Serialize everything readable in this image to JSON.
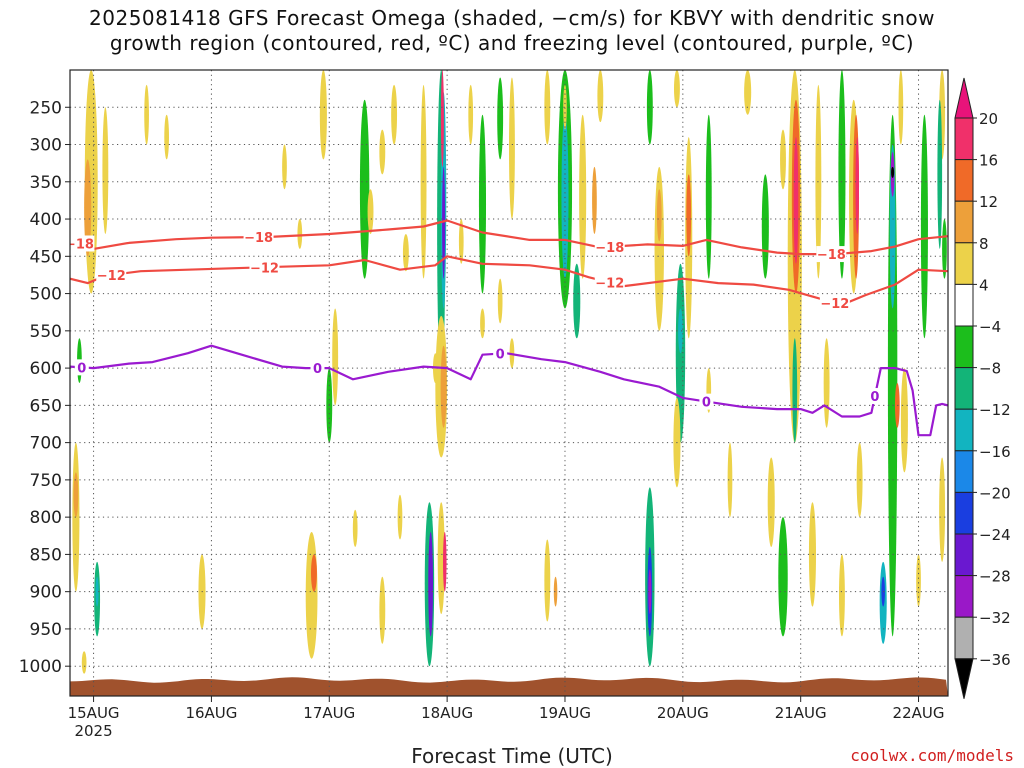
{
  "title_line1": "2025081418 GFS Forecast Omega (shaded, −cm/s) for KBVY with dendritic snow",
  "title_line2": "growth region (contoured, red, ºC) and freezing level (contoured, purple, ºC)",
  "xlabel": "Forecast Time (UTC)",
  "credit": "coolwx.com/models",
  "chart_data": {
    "type": "heatmap",
    "x_axis": {
      "ticks": [
        {
          "label": "15AUG",
          "sub": "2025",
          "day": 0.0
        },
        {
          "label": "16AUG",
          "day": 1.0
        },
        {
          "label": "17AUG",
          "day": 2.0
        },
        {
          "label": "18AUG",
          "day": 3.0
        },
        {
          "label": "19AUG",
          "day": 4.0
        },
        {
          "label": "20AUG",
          "day": 5.0
        },
        {
          "label": "21AUG",
          "day": 6.0
        },
        {
          "label": "22AUG",
          "day": 7.0
        }
      ],
      "range": [
        -0.2,
        7.25
      ]
    },
    "y_axis": {
      "ticks": [
        250,
        300,
        350,
        400,
        450,
        500,
        550,
        600,
        650,
        700,
        750,
        800,
        850,
        900,
        950,
        1000
      ],
      "range": [
        200,
        1040
      ]
    },
    "colorbar": {
      "levels": [
        "20",
        "16",
        "12",
        "8",
        "4",
        "−4",
        "−8",
        "−12",
        "−16",
        "−20",
        "−24",
        "−28",
        "−32",
        "−36"
      ],
      "colors": [
        "#f0306a",
        "#f06a28",
        "#eda03a",
        "#ecd24a",
        "#ffffff",
        "#1cbe1c",
        "#13b478",
        "#12b4c0",
        "#1b88e8",
        "#1a3ee0",
        "#6a18d0",
        "#9a18c8",
        "#b0b0b0"
      ],
      "top_color": "#e8137a",
      "bottom_color": "#000000"
    },
    "series": [
      {
        "name": "-18",
        "color": "#ef4a42",
        "label_days": [
          -0.12,
          1.4,
          4.38,
          6.26
        ],
        "x": [
          -0.2,
          0.0,
          0.3,
          0.7,
          1.0,
          1.5,
          2.0,
          2.5,
          2.8,
          3.0,
          3.3,
          3.7,
          4.0,
          4.3,
          4.7,
          5.0,
          5.2,
          5.5,
          5.8,
          6.0,
          6.3,
          6.6,
          6.8,
          7.0,
          7.25
        ],
        "y": [
          428,
          440,
          432,
          427,
          425,
          424,
          420,
          414,
          410,
          402,
          418,
          428,
          428,
          438,
          434,
          436,
          428,
          438,
          445,
          447,
          447,
          443,
          437,
          427,
          423
        ]
      },
      {
        "name": "-12",
        "color": "#ef4a42",
        "label_days": [
          0.15,
          1.45,
          4.38,
          6.29
        ],
        "x": [
          -0.2,
          -0.05,
          0.1,
          0.4,
          0.8,
          1.2,
          1.6,
          2.0,
          2.3,
          2.6,
          2.9,
          3.0,
          3.3,
          3.7,
          4.0,
          4.2,
          4.5,
          5.0,
          5.3,
          5.6,
          5.9,
          6.1,
          6.35,
          6.55,
          6.8,
          7.0,
          7.25
        ],
        "y": [
          480,
          486,
          476,
          470,
          468,
          466,
          464,
          462,
          455,
          468,
          462,
          450,
          460,
          462,
          468,
          478,
          490,
          480,
          486,
          488,
          495,
          504,
          515,
          502,
          488,
          468,
          470
        ]
      },
      {
        "name": "0",
        "color": "#9a1ad0",
        "label_days": [
          -0.1,
          1.9,
          3.45,
          5.2,
          6.63
        ],
        "x": [
          -0.2,
          0.0,
          0.3,
          0.5,
          0.8,
          1.0,
          1.3,
          1.6,
          1.8,
          2.0,
          2.2,
          2.5,
          2.8,
          3.0,
          3.2,
          3.3,
          3.5,
          3.8,
          4.0,
          4.3,
          4.5,
          4.8,
          5.0,
          5.2,
          5.5,
          5.8,
          6.0,
          6.1,
          6.2,
          6.35,
          6.5,
          6.6,
          6.68,
          6.8,
          6.9,
          6.95,
          7.0,
          7.1,
          7.15,
          7.2,
          7.25
        ],
        "y": [
          598,
          600,
          594,
          592,
          580,
          570,
          584,
          598,
          600,
          600,
          615,
          605,
          598,
          600,
          615,
          582,
          580,
          588,
          592,
          605,
          615,
          625,
          640,
          645,
          652,
          655,
          655,
          660,
          650,
          665,
          665,
          660,
          600,
          600,
          604,
          630,
          690,
          690,
          650,
          648,
          650
        ]
      }
    ],
    "omega_cells": [
      {
        "day": -0.02,
        "p1": 200,
        "p2": 500,
        "w": 0.11,
        "v": 6
      },
      {
        "day": -0.05,
        "p1": 320,
        "p2": 450,
        "w": 0.06,
        "v": 10
      },
      {
        "day": 0.1,
        "p1": 250,
        "p2": 420,
        "w": 0.05,
        "v": 6
      },
      {
        "day": -0.15,
        "p1": 700,
        "p2": 900,
        "w": 0.06,
        "v": 6
      },
      {
        "day": -0.15,
        "p1": 740,
        "p2": 800,
        "w": 0.04,
        "v": 10
      },
      {
        "day": 0.03,
        "p1": 860,
        "p2": 960,
        "w": 0.05,
        "v": -8
      },
      {
        "day": 0.03,
        "p1": 880,
        "p2": 920,
        "w": 0.02,
        "v": -14
      },
      {
        "day": -0.12,
        "p1": 560,
        "p2": 620,
        "w": 0.04,
        "v": -6
      },
      {
        "day": 0.45,
        "p1": 220,
        "p2": 300,
        "w": 0.04,
        "v": 6
      },
      {
        "day": 0.62,
        "p1": 260,
        "p2": 320,
        "w": 0.04,
        "v": 6
      },
      {
        "day": -0.08,
        "p1": 980,
        "p2": 1010,
        "w": 0.04,
        "v": 6
      },
      {
        "day": 0.92,
        "p1": 850,
        "p2": 950,
        "w": 0.06,
        "v": 6
      },
      {
        "day": 1.62,
        "p1": 300,
        "p2": 360,
        "w": 0.04,
        "v": 6
      },
      {
        "day": 1.75,
        "p1": 400,
        "p2": 440,
        "w": 0.04,
        "v": 6
      },
      {
        "day": 1.85,
        "p1": 820,
        "p2": 990,
        "w": 0.1,
        "v": 6
      },
      {
        "day": 1.87,
        "p1": 850,
        "p2": 900,
        "w": 0.05,
        "v": 12
      },
      {
        "day": 1.95,
        "p1": 200,
        "p2": 320,
        "w": 0.06,
        "v": 6
      },
      {
        "day": 2.0,
        "p1": 600,
        "p2": 700,
        "w": 0.05,
        "v": -6
      },
      {
        "day": 2.05,
        "p1": 520,
        "p2": 650,
        "w": 0.05,
        "v": 6
      },
      {
        "day": 2.22,
        "p1": 790,
        "p2": 840,
        "w": 0.04,
        "v": 6
      },
      {
        "day": 2.3,
        "p1": 240,
        "p2": 480,
        "w": 0.08,
        "v": -6
      },
      {
        "day": 2.35,
        "p1": 360,
        "p2": 420,
        "w": 0.05,
        "v": 6
      },
      {
        "day": 2.45,
        "p1": 280,
        "p2": 340,
        "w": 0.05,
        "v": 6
      },
      {
        "day": 2.55,
        "p1": 220,
        "p2": 300,
        "w": 0.05,
        "v": 6
      },
      {
        "day": 2.65,
        "p1": 420,
        "p2": 470,
        "w": 0.05,
        "v": 6
      },
      {
        "day": 2.8,
        "p1": 220,
        "p2": 480,
        "w": 0.05,
        "v": 6
      },
      {
        "day": 2.45,
        "p1": 880,
        "p2": 970,
        "w": 0.05,
        "v": 6
      },
      {
        "day": 2.6,
        "p1": 770,
        "p2": 830,
        "w": 0.04,
        "v": 6
      },
      {
        "day": 2.9,
        "p1": 580,
        "p2": 620,
        "w": 0.04,
        "v": 6
      },
      {
        "day": 2.95,
        "p1": 200,
        "p2": 620,
        "w": 0.07,
        "v": -8
      },
      {
        "day": 2.97,
        "p1": 230,
        "p2": 520,
        "w": 0.045,
        "v": -14
      },
      {
        "day": 2.97,
        "p1": 330,
        "p2": 480,
        "w": 0.025,
        "v": -24
      },
      {
        "day": 2.96,
        "p1": 200,
        "p2": 330,
        "w": 0.025,
        "v": 18
      },
      {
        "day": 2.95,
        "p1": 530,
        "p2": 720,
        "w": 0.1,
        "v": 6
      },
      {
        "day": 2.97,
        "p1": 570,
        "p2": 680,
        "w": 0.05,
        "v": 10
      },
      {
        "day": 2.85,
        "p1": 780,
        "p2": 1000,
        "w": 0.08,
        "v": -8
      },
      {
        "day": 2.86,
        "p1": 820,
        "p2": 960,
        "w": 0.04,
        "v": -24
      },
      {
        "day": 2.95,
        "p1": 780,
        "p2": 930,
        "w": 0.06,
        "v": 6
      },
      {
        "day": 2.98,
        "p1": 820,
        "p2": 900,
        "w": 0.03,
        "v": 18
      },
      {
        "day": 3.12,
        "p1": 400,
        "p2": 460,
        "w": 0.04,
        "v": 6
      },
      {
        "day": 3.2,
        "p1": 220,
        "p2": 300,
        "w": 0.04,
        "v": 6
      },
      {
        "day": 3.3,
        "p1": 260,
        "p2": 500,
        "w": 0.06,
        "v": -6
      },
      {
        "day": 3.45,
        "p1": 210,
        "p2": 320,
        "w": 0.05,
        "v": -6
      },
      {
        "day": 3.55,
        "p1": 210,
        "p2": 400,
        "w": 0.05,
        "v": 6
      },
      {
        "day": 3.45,
        "p1": 480,
        "p2": 540,
        "w": 0.04,
        "v": 6
      },
      {
        "day": 3.55,
        "p1": 560,
        "p2": 600,
        "w": 0.04,
        "v": 6
      },
      {
        "day": 3.3,
        "p1": 520,
        "p2": 560,
        "w": 0.04,
        "v": 6
      },
      {
        "day": 3.85,
        "p1": 200,
        "p2": 300,
        "w": 0.05,
        "v": 6
      },
      {
        "day": 4.0,
        "p1": 200,
        "p2": 520,
        "w": 0.12,
        "v": -6
      },
      {
        "day": 4.0,
        "p1": 260,
        "p2": 480,
        "w": 0.06,
        "v": -12
      },
      {
        "day": 4.0,
        "p1": 220,
        "p2": 280,
        "w": 0.03,
        "v": 6
      },
      {
        "day": 4.15,
        "p1": 260,
        "p2": 480,
        "w": 0.06,
        "v": 6
      },
      {
        "day": 4.25,
        "p1": 330,
        "p2": 420,
        "w": 0.04,
        "v": 10
      },
      {
        "day": 4.1,
        "p1": 460,
        "p2": 560,
        "w": 0.06,
        "v": -8
      },
      {
        "day": 3.85,
        "p1": 830,
        "p2": 940,
        "w": 0.05,
        "v": 6
      },
      {
        "day": 3.92,
        "p1": 880,
        "p2": 920,
        "w": 0.03,
        "v": 10
      },
      {
        "day": 4.3,
        "p1": 200,
        "p2": 270,
        "w": 0.05,
        "v": 6
      },
      {
        "day": 4.8,
        "p1": 330,
        "p2": 550,
        "w": 0.08,
        "v": 6
      },
      {
        "day": 4.8,
        "p1": 360,
        "p2": 430,
        "w": 0.04,
        "v": 10
      },
      {
        "day": 4.72,
        "p1": 200,
        "p2": 300,
        "w": 0.05,
        "v": -6
      },
      {
        "day": 4.95,
        "p1": 200,
        "p2": 250,
        "w": 0.05,
        "v": 6
      },
      {
        "day": 4.98,
        "p1": 460,
        "p2": 700,
        "w": 0.08,
        "v": -8
      },
      {
        "day": 4.98,
        "p1": 520,
        "p2": 580,
        "w": 0.04,
        "v": -14
      },
      {
        "day": 5.05,
        "p1": 290,
        "p2": 560,
        "w": 0.06,
        "v": 6
      },
      {
        "day": 5.05,
        "p1": 340,
        "p2": 450,
        "w": 0.04,
        "v": 12
      },
      {
        "day": 4.95,
        "p1": 640,
        "p2": 760,
        "w": 0.06,
        "v": 6
      },
      {
        "day": 4.72,
        "p1": 760,
        "p2": 1000,
        "w": 0.08,
        "v": -8
      },
      {
        "day": 4.72,
        "p1": 840,
        "p2": 960,
        "w": 0.04,
        "v": -20
      },
      {
        "day": 4.72,
        "p1": 870,
        "p2": 930,
        "w": 0.02,
        "v": -28
      },
      {
        "day": 5.22,
        "p1": 260,
        "p2": 480,
        "w": 0.05,
        "v": -6
      },
      {
        "day": 5.22,
        "p1": 600,
        "p2": 660,
        "w": 0.04,
        "v": 6
      },
      {
        "day": 5.55,
        "p1": 200,
        "p2": 260,
        "w": 0.06,
        "v": 6
      },
      {
        "day": 5.4,
        "p1": 700,
        "p2": 800,
        "w": 0.04,
        "v": 6
      },
      {
        "day": 5.7,
        "p1": 340,
        "p2": 480,
        "w": 0.06,
        "v": -6
      },
      {
        "day": 5.85,
        "p1": 280,
        "p2": 360,
        "w": 0.05,
        "v": 6
      },
      {
        "day": 5.85,
        "p1": 800,
        "p2": 960,
        "w": 0.08,
        "v": -6
      },
      {
        "day": 5.75,
        "p1": 720,
        "p2": 840,
        "w": 0.06,
        "v": 6
      },
      {
        "day": 5.95,
        "p1": 200,
        "p2": 700,
        "w": 0.12,
        "v": 6
      },
      {
        "day": 5.96,
        "p1": 240,
        "p2": 500,
        "w": 0.07,
        "v": 12
      },
      {
        "day": 5.96,
        "p1": 290,
        "p2": 460,
        "w": 0.04,
        "v": 18
      },
      {
        "day": 5.95,
        "p1": 560,
        "p2": 700,
        "w": 0.04,
        "v": -8
      },
      {
        "day": 6.1,
        "p1": 780,
        "p2": 920,
        "w": 0.06,
        "v": 6
      },
      {
        "day": 6.15,
        "p1": 220,
        "p2": 480,
        "w": 0.05,
        "v": 6
      },
      {
        "day": 6.22,
        "p1": 560,
        "p2": 680,
        "w": 0.05,
        "v": 6
      },
      {
        "day": 6.35,
        "p1": 200,
        "p2": 480,
        "w": 0.06,
        "v": -6
      },
      {
        "day": 6.45,
        "p1": 240,
        "p2": 500,
        "w": 0.08,
        "v": 6
      },
      {
        "day": 6.47,
        "p1": 260,
        "p2": 480,
        "w": 0.05,
        "v": 12
      },
      {
        "day": 6.48,
        "p1": 290,
        "p2": 420,
        "w": 0.03,
        "v": 18
      },
      {
        "day": 6.35,
        "p1": 850,
        "p2": 960,
        "w": 0.05,
        "v": 6
      },
      {
        "day": 6.5,
        "p1": 700,
        "p2": 800,
        "w": 0.05,
        "v": 6
      },
      {
        "day": 6.78,
        "p1": 260,
        "p2": 960,
        "w": 0.08,
        "v": -6
      },
      {
        "day": 6.78,
        "p1": 300,
        "p2": 520,
        "w": 0.05,
        "v": -14
      },
      {
        "day": 6.78,
        "p1": 310,
        "p2": 370,
        "w": 0.03,
        "v": -30
      },
      {
        "day": 6.78,
        "p1": 330,
        "p2": 345,
        "w": 0.015,
        "v": -36
      },
      {
        "day": 6.7,
        "p1": 860,
        "p2": 970,
        "w": 0.06,
        "v": -14
      },
      {
        "day": 6.7,
        "p1": 880,
        "p2": 920,
        "w": 0.03,
        "v": -22
      },
      {
        "day": 6.85,
        "p1": 200,
        "p2": 300,
        "w": 0.04,
        "v": 6
      },
      {
        "day": 6.88,
        "p1": 600,
        "p2": 740,
        "w": 0.06,
        "v": 6
      },
      {
        "day": 6.82,
        "p1": 620,
        "p2": 680,
        "w": 0.04,
        "v": 12
      },
      {
        "day": 7.0,
        "p1": 850,
        "p2": 920,
        "w": 0.04,
        "v": 6
      },
      {
        "day": 7.05,
        "p1": 260,
        "p2": 560,
        "w": 0.06,
        "v": -6
      },
      {
        "day": 7.2,
        "p1": 200,
        "p2": 320,
        "w": 0.05,
        "v": 6
      },
      {
        "day": 7.22,
        "p1": 400,
        "p2": 480,
        "w": 0.04,
        "v": -6
      },
      {
        "day": 7.2,
        "p1": 720,
        "p2": 860,
        "w": 0.05,
        "v": 6
      },
      {
        "day": 7.18,
        "p1": 240,
        "p2": 440,
        "w": 0.04,
        "v": -8
      }
    ],
    "terrain_color": "#a0522d"
  }
}
